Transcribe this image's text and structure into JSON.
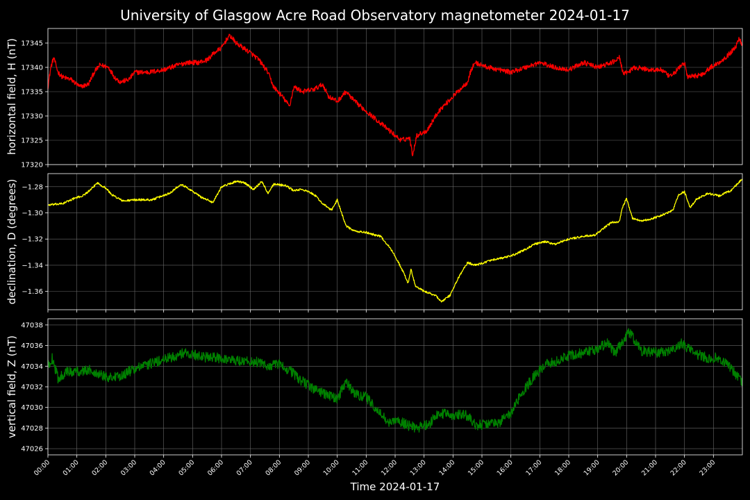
{
  "chart_data": {
    "type": "line",
    "title": "University of Glasgow Acre Road Observatory magnetometer 2024-01-17",
    "xlabel": "Time 2024-01-17",
    "x_ticks": [
      "00:00",
      "01:00",
      "02:00",
      "03:00",
      "04:00",
      "05:00",
      "06:00",
      "07:00",
      "08:00",
      "09:00",
      "10:00",
      "11:00",
      "12:00",
      "13:00",
      "14:00",
      "15:00",
      "16:00",
      "17:00",
      "18:00",
      "19:00",
      "20:00",
      "21:00",
      "22:00",
      "23:00"
    ],
    "x_range_hours": [
      0,
      24
    ],
    "grid": true,
    "panels": [
      {
        "ylabel": "horizontal field, H (nT)",
        "color": "#ff0000",
        "ylim": [
          17320,
          17348
        ],
        "y_ticks": [
          17320,
          17325,
          17330,
          17335,
          17340,
          17345
        ],
        "y_tick_labels": [
          "17320",
          "17325",
          "17330",
          "17335",
          "17340",
          "17345"
        ],
        "noise": 0.5,
        "points": [
          [
            0,
            17336
          ],
          [
            0.1,
            17340
          ],
          [
            0.2,
            17342
          ],
          [
            0.35,
            17339
          ],
          [
            0.5,
            17338
          ],
          [
            0.8,
            17337.5
          ],
          [
            1.1,
            17336
          ],
          [
            1.4,
            17336.5
          ],
          [
            1.6,
            17339
          ],
          [
            1.8,
            17340.5
          ],
          [
            2.1,
            17340
          ],
          [
            2.3,
            17338
          ],
          [
            2.5,
            17337
          ],
          [
            2.8,
            17337.5
          ],
          [
            3.0,
            17339
          ],
          [
            3.5,
            17339
          ],
          [
            4.0,
            17339.5
          ],
          [
            4.5,
            17340.5
          ],
          [
            4.8,
            17341
          ],
          [
            5.2,
            17341
          ],
          [
            5.5,
            17341.5
          ],
          [
            5.75,
            17343
          ],
          [
            6.0,
            17344
          ],
          [
            6.2,
            17346
          ],
          [
            6.3,
            17346.5
          ],
          [
            6.5,
            17345
          ],
          [
            7.0,
            17343
          ],
          [
            7.3,
            17341.5
          ],
          [
            7.6,
            17339
          ],
          [
            7.8,
            17336
          ],
          [
            8.1,
            17334
          ],
          [
            8.35,
            17332
          ],
          [
            8.5,
            17336
          ],
          [
            8.8,
            17335
          ],
          [
            9.2,
            17335.5
          ],
          [
            9.5,
            17336.5
          ],
          [
            9.7,
            17334
          ],
          [
            10.0,
            17333
          ],
          [
            10.3,
            17335
          ],
          [
            10.6,
            17333
          ],
          [
            11.0,
            17331
          ],
          [
            11.4,
            17329
          ],
          [
            11.8,
            17327
          ],
          [
            12.2,
            17325
          ],
          [
            12.5,
            17325.5
          ],
          [
            12.6,
            17322
          ],
          [
            12.75,
            17326
          ],
          [
            13.1,
            17327
          ],
          [
            13.5,
            17331
          ],
          [
            14.0,
            17334
          ],
          [
            14.5,
            17337
          ],
          [
            14.6,
            17339
          ],
          [
            14.75,
            17341
          ],
          [
            15.2,
            17340
          ],
          [
            15.6,
            17339.5
          ],
          [
            16.0,
            17339
          ],
          [
            16.5,
            17340
          ],
          [
            17.0,
            17341
          ],
          [
            17.5,
            17340
          ],
          [
            18.0,
            17339.5
          ],
          [
            18.5,
            17341
          ],
          [
            19.0,
            17340
          ],
          [
            19.5,
            17341
          ],
          [
            19.75,
            17342
          ],
          [
            19.9,
            17338.5
          ],
          [
            20.3,
            17340
          ],
          [
            20.8,
            17339.5
          ],
          [
            21.2,
            17339.5
          ],
          [
            21.5,
            17338
          ],
          [
            22.0,
            17341
          ],
          [
            22.1,
            17338
          ],
          [
            22.6,
            17338.5
          ],
          [
            22.9,
            17340
          ],
          [
            23.2,
            17341
          ],
          [
            23.5,
            17342.5
          ],
          [
            23.75,
            17344
          ],
          [
            23.9,
            17346
          ],
          [
            24,
            17344.5
          ]
        ]
      },
      {
        "ylabel": "declination, D (degrees)",
        "color": "#ffff00",
        "ylim": [
          -1.374,
          -1.27
        ],
        "y_ticks": [
          -1.36,
          -1.34,
          -1.32,
          -1.3,
          -1.28
        ],
        "y_tick_labels": [
          "−1.36",
          "−1.34",
          "−1.32",
          "−1.30",
          "−1.28"
        ],
        "noise": 0.0008,
        "points": [
          [
            0,
            -1.294
          ],
          [
            0.5,
            -1.293
          ],
          [
            0.9,
            -1.289
          ],
          [
            1.2,
            -1.287
          ],
          [
            1.5,
            -1.282
          ],
          [
            1.7,
            -1.277
          ],
          [
            2.0,
            -1.281
          ],
          [
            2.2,
            -1.286
          ],
          [
            2.6,
            -1.291
          ],
          [
            3.0,
            -1.29
          ],
          [
            3.6,
            -1.29
          ],
          [
            4.2,
            -1.285
          ],
          [
            4.6,
            -1.278
          ],
          [
            4.9,
            -1.282
          ],
          [
            5.3,
            -1.288
          ],
          [
            5.7,
            -1.292
          ],
          [
            6.0,
            -1.28
          ],
          [
            6.5,
            -1.276
          ],
          [
            6.8,
            -1.277
          ],
          [
            7.1,
            -1.282
          ],
          [
            7.4,
            -1.276
          ],
          [
            7.6,
            -1.285
          ],
          [
            7.8,
            -1.278
          ],
          [
            8.2,
            -1.279
          ],
          [
            8.5,
            -1.283
          ],
          [
            8.8,
            -1.282
          ],
          [
            9.2,
            -1.286
          ],
          [
            9.5,
            -1.293
          ],
          [
            9.8,
            -1.298
          ],
          [
            10.0,
            -1.29
          ],
          [
            10.3,
            -1.31
          ],
          [
            10.6,
            -1.314
          ],
          [
            11.0,
            -1.315
          ],
          [
            11.5,
            -1.318
          ],
          [
            11.8,
            -1.326
          ],
          [
            12.0,
            -1.333
          ],
          [
            12.3,
            -1.346
          ],
          [
            12.45,
            -1.354
          ],
          [
            12.55,
            -1.343
          ],
          [
            12.7,
            -1.356
          ],
          [
            13.0,
            -1.36
          ],
          [
            13.4,
            -1.363
          ],
          [
            13.6,
            -1.368
          ],
          [
            13.9,
            -1.363
          ],
          [
            14.2,
            -1.349
          ],
          [
            14.5,
            -1.338
          ],
          [
            14.8,
            -1.34
          ],
          [
            15.2,
            -1.337
          ],
          [
            15.6,
            -1.335
          ],
          [
            16.0,
            -1.333
          ],
          [
            16.5,
            -1.328
          ],
          [
            16.8,
            -1.324
          ],
          [
            17.2,
            -1.322
          ],
          [
            17.5,
            -1.324
          ],
          [
            18.0,
            -1.32
          ],
          [
            18.5,
            -1.318
          ],
          [
            18.9,
            -1.317
          ],
          [
            19.2,
            -1.312
          ],
          [
            19.5,
            -1.307
          ],
          [
            19.75,
            -1.307
          ],
          [
            19.85,
            -1.296
          ],
          [
            20.0,
            -1.289
          ],
          [
            20.2,
            -1.304
          ],
          [
            20.5,
            -1.306
          ],
          [
            20.8,
            -1.305
          ],
          [
            21.2,
            -1.302
          ],
          [
            21.6,
            -1.298
          ],
          [
            21.8,
            -1.286
          ],
          [
            22.0,
            -1.284
          ],
          [
            22.2,
            -1.296
          ],
          [
            22.4,
            -1.29
          ],
          [
            22.8,
            -1.285
          ],
          [
            23.2,
            -1.287
          ],
          [
            23.6,
            -1.283
          ],
          [
            24,
            -1.274
          ]
        ]
      },
      {
        "ylabel": "vertical field, Z (nT)",
        "color": "#008000",
        "ylim": [
          47025.4,
          47038.6
        ],
        "y_ticks": [
          47026,
          47028,
          47030,
          47032,
          47034,
          47036,
          47038
        ],
        "y_tick_labels": [
          "47026",
          "47028",
          "47030",
          "47032",
          "47034",
          "47036",
          "47038"
        ],
        "noise": 0.5,
        "points": [
          [
            0,
            47034
          ],
          [
            0.15,
            47034.8
          ],
          [
            0.35,
            47032.8
          ],
          [
            0.6,
            47033.4
          ],
          [
            1.0,
            47033.5
          ],
          [
            1.5,
            47033.6
          ],
          [
            2.0,
            47033
          ],
          [
            2.4,
            47032.9
          ],
          [
            2.8,
            47033.5
          ],
          [
            3.2,
            47033.9
          ],
          [
            3.6,
            47034.3
          ],
          [
            4.0,
            47034.6
          ],
          [
            4.5,
            47035.1
          ],
          [
            4.8,
            47035.3
          ],
          [
            5.2,
            47035
          ],
          [
            5.6,
            47034.8
          ],
          [
            6.0,
            47034.8
          ],
          [
            6.3,
            47034.6
          ],
          [
            6.8,
            47034.5
          ],
          [
            7.2,
            47034.4
          ],
          [
            7.6,
            47034
          ],
          [
            8.0,
            47034.2
          ],
          [
            8.4,
            47033.5
          ],
          [
            8.8,
            47032.5
          ],
          [
            9.2,
            47031.8
          ],
          [
            9.6,
            47031.3
          ],
          [
            10.0,
            47030.8
          ],
          [
            10.3,
            47032.5
          ],
          [
            10.6,
            47031.3
          ],
          [
            11.0,
            47031
          ],
          [
            11.4,
            47029.6
          ],
          [
            11.8,
            47028.5
          ],
          [
            12.1,
            47028.7
          ],
          [
            12.5,
            47028.2
          ],
          [
            12.8,
            47028
          ],
          [
            13.2,
            47028.5
          ],
          [
            13.5,
            47029.4
          ],
          [
            14.0,
            47029.3
          ],
          [
            14.4,
            47029.4
          ],
          [
            14.8,
            47028.3
          ],
          [
            15.2,
            47028.4
          ],
          [
            15.6,
            47028.5
          ],
          [
            16.0,
            47029.5
          ],
          [
            16.4,
            47031.5
          ],
          [
            16.8,
            47033
          ],
          [
            17.2,
            47034.2
          ],
          [
            17.6,
            47034.5
          ],
          [
            18.0,
            47035
          ],
          [
            18.5,
            47035.3
          ],
          [
            19.0,
            47035.6
          ],
          [
            19.3,
            47036.3
          ],
          [
            19.6,
            47035.3
          ],
          [
            19.9,
            47036.5
          ],
          [
            20.1,
            47037.3
          ],
          [
            20.5,
            47035.5
          ],
          [
            21.0,
            47035.3
          ],
          [
            21.5,
            47035.5
          ],
          [
            21.9,
            47036.2
          ],
          [
            22.3,
            47035.3
          ],
          [
            22.8,
            47034.8
          ],
          [
            23.2,
            47034.8
          ],
          [
            23.6,
            47033.8
          ],
          [
            24,
            47032.5
          ]
        ]
      }
    ]
  }
}
